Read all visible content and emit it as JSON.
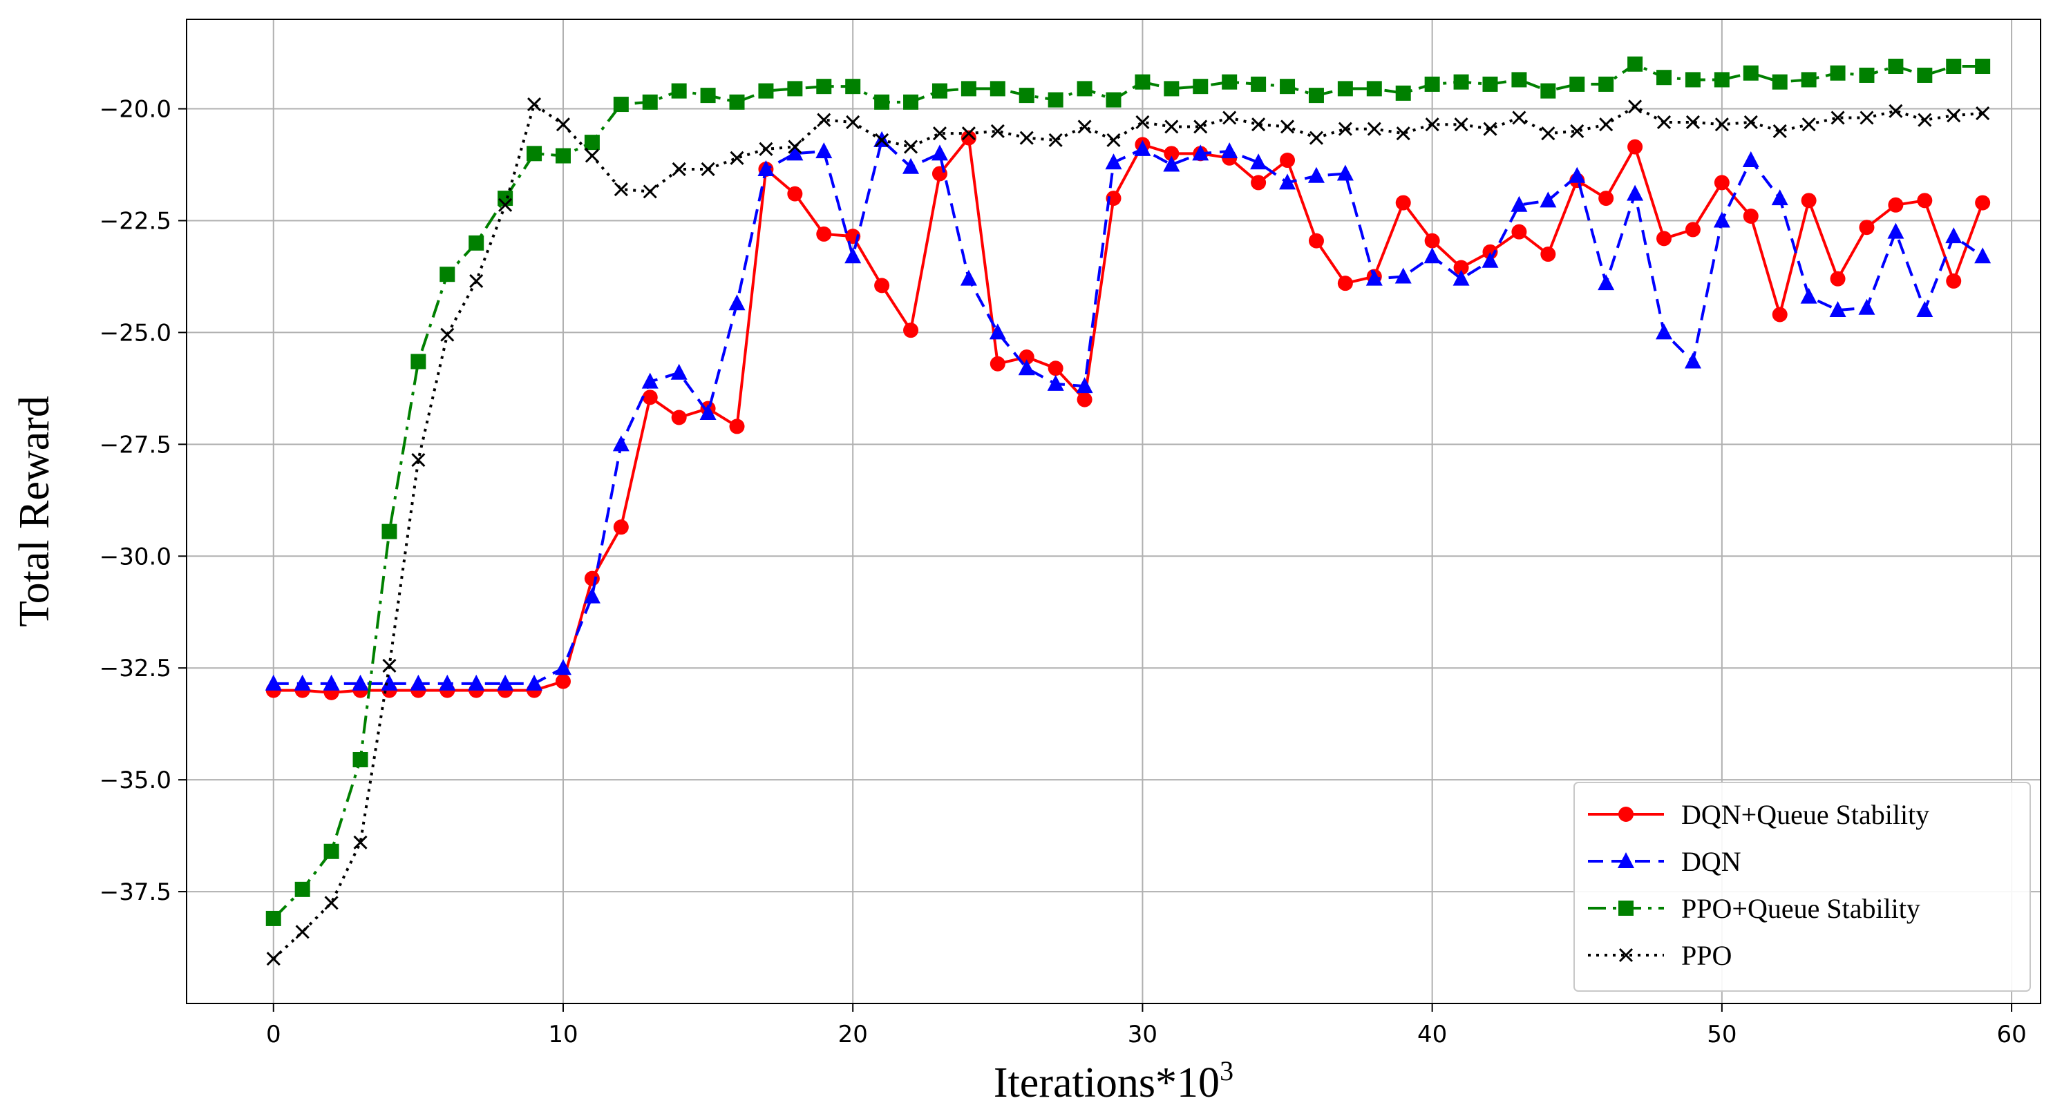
{
  "chart_data": {
    "type": "line",
    "xlabel": "Iterations*10",
    "xlabel_superscript": "3",
    "ylabel": "Total Reward",
    "xlim": [
      -3,
      61
    ],
    "ylim": [
      -40,
      -18
    ],
    "x_ticks": [
      0,
      10,
      20,
      30,
      40,
      50,
      60
    ],
    "y_ticks": [
      -37.5,
      -35.0,
      -32.5,
      -30.0,
      -27.5,
      -25.0,
      -22.5,
      -20.0
    ],
    "x_tick_labels": [
      "0",
      "10",
      "20",
      "30",
      "40",
      "50",
      "60"
    ],
    "y_tick_labels": [
      "−37.5",
      "−35.0",
      "−32.5",
      "−30.0",
      "−27.5",
      "−25.0",
      "−22.5",
      "−20.0"
    ],
    "grid": true,
    "legend_position": "lower-right",
    "x": [
      0,
      1,
      2,
      3,
      4,
      5,
      6,
      7,
      8,
      9,
      10,
      11,
      12,
      13,
      14,
      15,
      16,
      17,
      18,
      19,
      20,
      21,
      22,
      23,
      24,
      25,
      26,
      27,
      28,
      29,
      30,
      31,
      32,
      33,
      34,
      35,
      36,
      37,
      38,
      39,
      40,
      41,
      42,
      43,
      44,
      45,
      46,
      47,
      48,
      49,
      50,
      51,
      52,
      53,
      54,
      55,
      56,
      57,
      58,
      59
    ],
    "series": [
      {
        "name": "DQN+Queue Stability",
        "color": "#ff0000",
        "line_style": "solid",
        "marker": "circle",
        "values": [
          -33.0,
          -33.0,
          -33.05,
          -33.0,
          -33.0,
          -33.0,
          -33.0,
          -33.0,
          -33.0,
          -33.0,
          -32.8,
          -30.5,
          -29.35,
          -26.45,
          -26.9,
          -26.7,
          -27.1,
          -21.35,
          -21.9,
          -22.8,
          -22.85,
          -23.95,
          -24.95,
          -21.45,
          -20.65,
          -25.7,
          -25.55,
          -25.8,
          -26.5,
          -22.0,
          -20.8,
          -21.0,
          -21.0,
          -21.1,
          -21.65,
          -21.15,
          -22.95,
          -23.9,
          -23.75,
          -22.1,
          -22.95,
          -23.55,
          -23.2,
          -22.75,
          -23.25,
          -21.6,
          -22.0,
          -20.85,
          -22.9,
          -22.7,
          -21.65,
          -22.4,
          -24.6,
          -22.05,
          -23.8,
          -22.65,
          -22.15,
          -22.05,
          -23.85,
          -22.1
        ]
      },
      {
        "name": "DQN",
        "color": "#0000ff",
        "line_style": "dashed",
        "marker": "triangle",
        "values": [
          -32.85,
          -32.85,
          -32.85,
          -32.85,
          -32.85,
          -32.85,
          -32.85,
          -32.85,
          -32.85,
          -32.85,
          -32.5,
          -30.9,
          -27.5,
          -26.1,
          -25.9,
          -26.8,
          -24.35,
          -21.35,
          -21.0,
          -20.95,
          -23.3,
          -20.7,
          -21.3,
          -21.0,
          -23.8,
          -25.0,
          -25.8,
          -26.15,
          -26.2,
          -21.2,
          -20.9,
          -21.25,
          -21.0,
          -20.95,
          -21.2,
          -21.65,
          -21.5,
          -21.45,
          -23.8,
          -23.75,
          -23.3,
          -23.8,
          -23.4,
          -22.15,
          -22.05,
          -21.5,
          -23.9,
          -21.9,
          -25.0,
          -25.65,
          -22.5,
          -21.15,
          -22.0,
          -24.2,
          -24.5,
          -24.45,
          -22.75,
          -24.5,
          -22.85,
          -23.3
        ]
      },
      {
        "name": "PPO+Queue Stability",
        "color": "#008000",
        "line_style": "dashdot",
        "marker": "square",
        "values": [
          -38.1,
          -37.45,
          -36.6,
          -34.55,
          -29.45,
          -25.65,
          -23.7,
          -23.0,
          -22.0,
          -21.0,
          -21.05,
          -20.75,
          -19.9,
          -19.85,
          -19.6,
          -19.7,
          -19.85,
          -19.6,
          -19.55,
          -19.5,
          -19.5,
          -19.85,
          -19.85,
          -19.6,
          -19.55,
          -19.55,
          -19.7,
          -19.8,
          -19.55,
          -19.8,
          -19.4,
          -19.55,
          -19.5,
          -19.4,
          -19.45,
          -19.5,
          -19.7,
          -19.55,
          -19.55,
          -19.65,
          -19.45,
          -19.4,
          -19.45,
          -19.35,
          -19.6,
          -19.45,
          -19.45,
          -19.0,
          -19.3,
          -19.35,
          -19.35,
          -19.2,
          -19.4,
          -19.35,
          -19.2,
          -19.25,
          -19.05,
          -19.25,
          -19.05,
          -19.05
        ]
      },
      {
        "name": "PPO",
        "color": "#000000",
        "line_style": "dotted",
        "marker": "x",
        "values": [
          -39.0,
          -38.4,
          -37.75,
          -36.4,
          -32.45,
          -27.85,
          -25.05,
          -23.85,
          -22.15,
          -19.9,
          -20.35,
          -21.05,
          -21.8,
          -21.85,
          -21.35,
          -21.35,
          -21.1,
          -20.9,
          -20.85,
          -20.25,
          -20.3,
          -20.7,
          -20.85,
          -20.55,
          -20.55,
          -20.5,
          -20.65,
          -20.7,
          -20.4,
          -20.7,
          -20.3,
          -20.4,
          -20.4,
          -20.2,
          -20.35,
          -20.4,
          -20.65,
          -20.45,
          -20.45,
          -20.55,
          -20.35,
          -20.35,
          -20.45,
          -20.2,
          -20.55,
          -20.5,
          -20.35,
          -19.95,
          -20.3,
          -20.3,
          -20.35,
          -20.3,
          -20.5,
          -20.35,
          -20.2,
          -20.2,
          -20.05,
          -20.25,
          -20.15,
          -20.1
        ]
      }
    ]
  }
}
